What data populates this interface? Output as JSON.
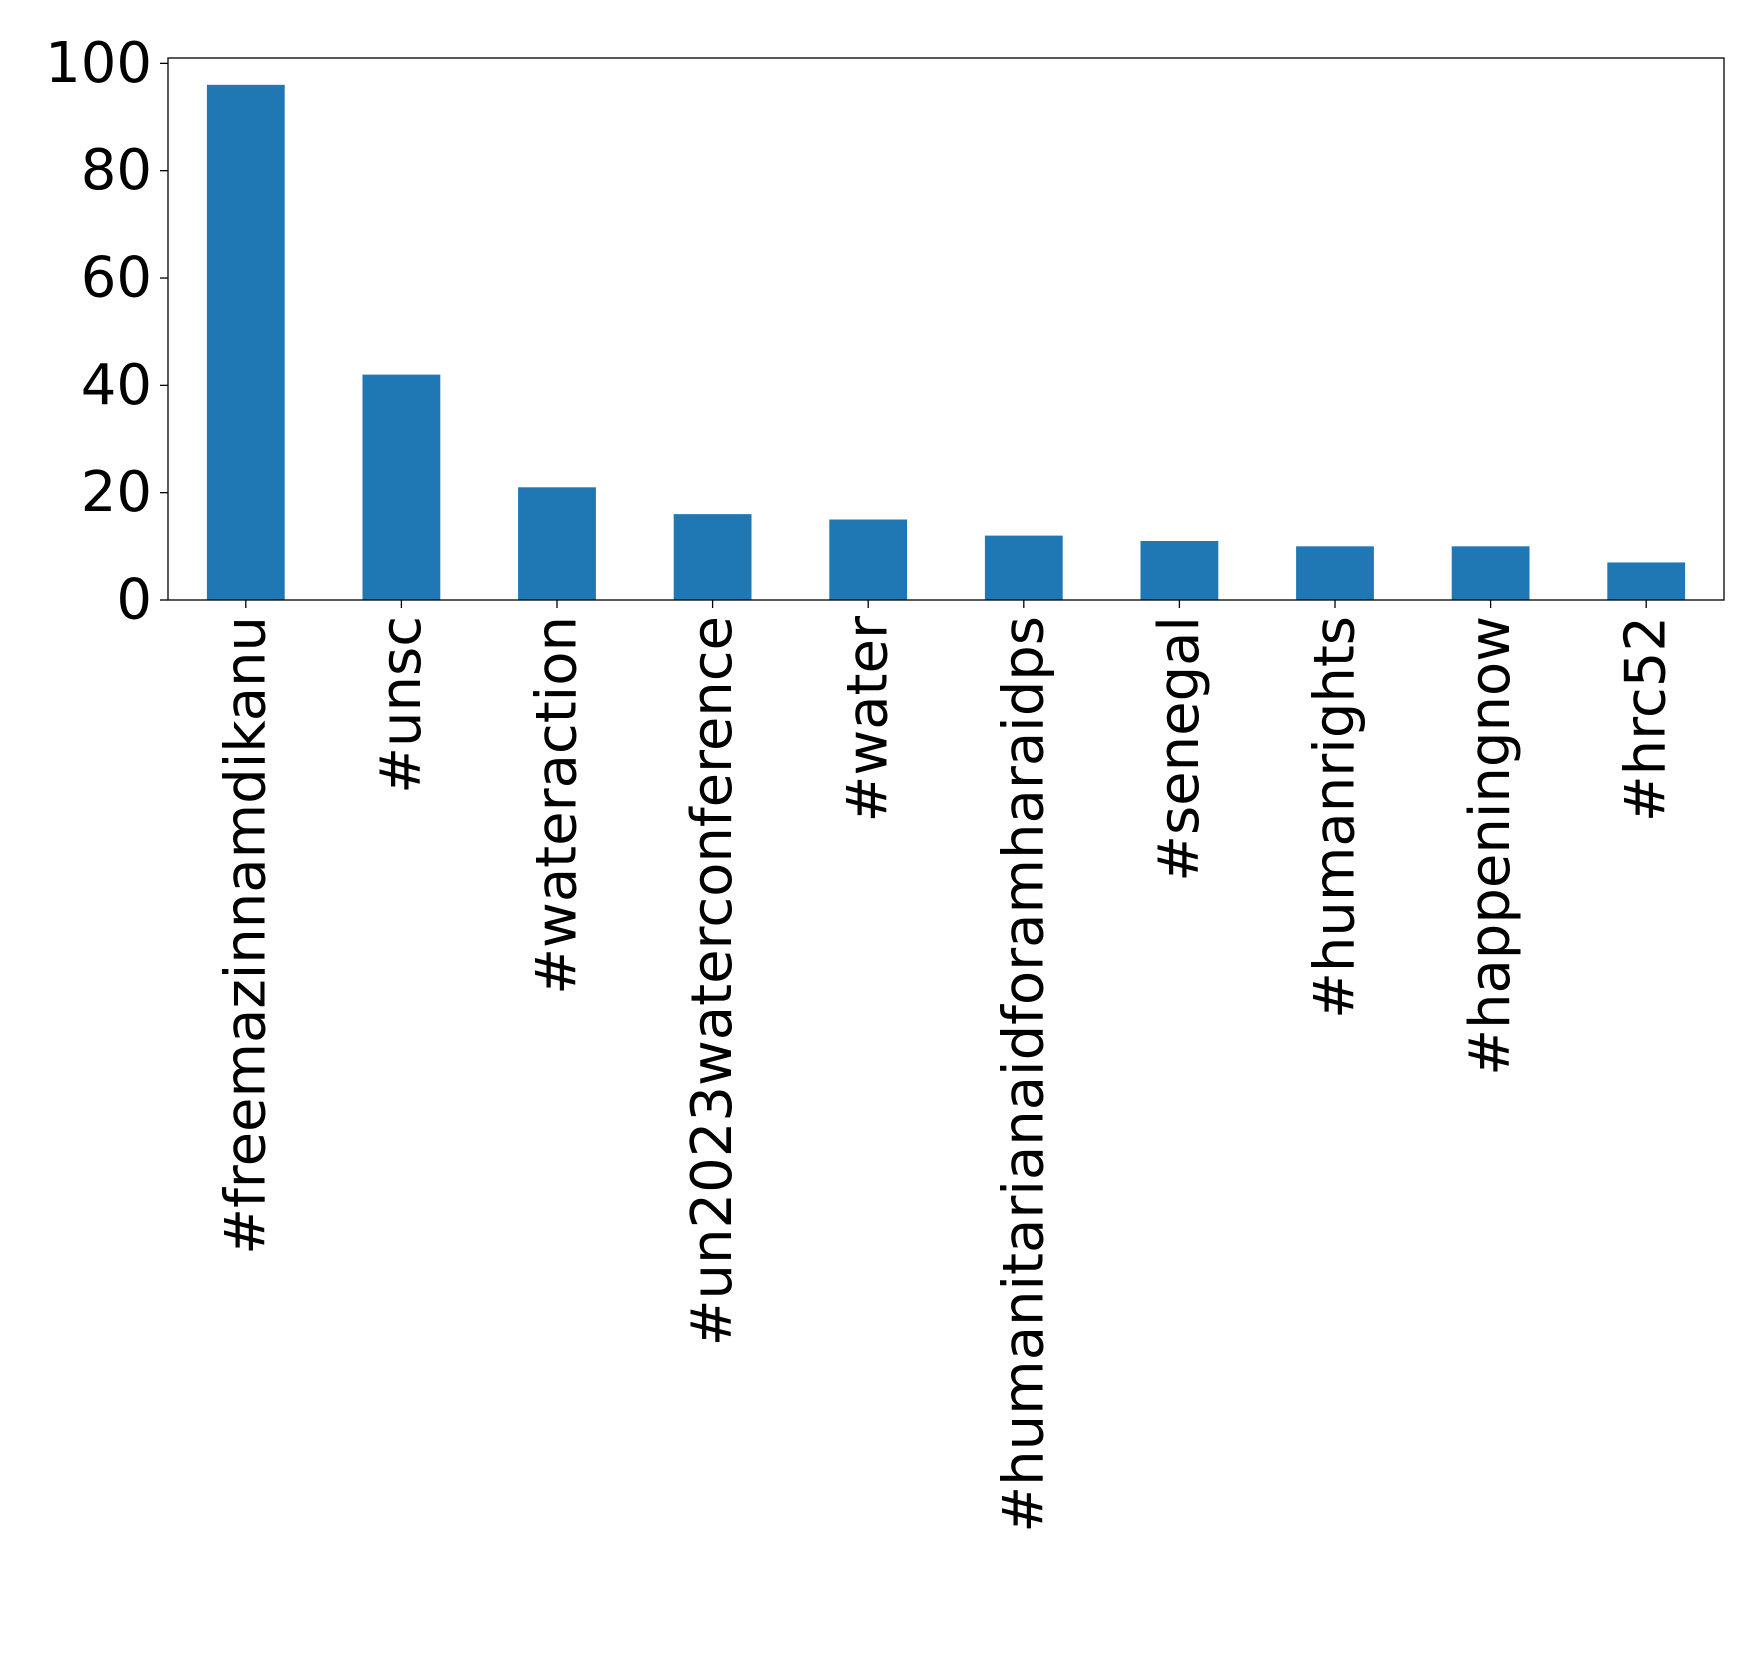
{
  "chart_data": {
    "type": "bar",
    "title": "",
    "xlabel": "",
    "ylabel": "",
    "categories": [
      "#freemazinnamdikanu",
      "#unsc",
      "#wateraction",
      "#un2023waterconference",
      "#water",
      "#humanitarianaidforamharaidps",
      "#senegal",
      "#humanrights",
      "#happeningnow",
      "#hrc52"
    ],
    "values": [
      96,
      42,
      21,
      16,
      15,
      12,
      11,
      10,
      10,
      7
    ],
    "ylim": [
      0,
      101
    ],
    "yticks": [
      0,
      20,
      40,
      60,
      80,
      100
    ],
    "bar_color": "#1f77b4",
    "grid": false,
    "legend": "none",
    "x_tick_rotation": "vertical"
  }
}
